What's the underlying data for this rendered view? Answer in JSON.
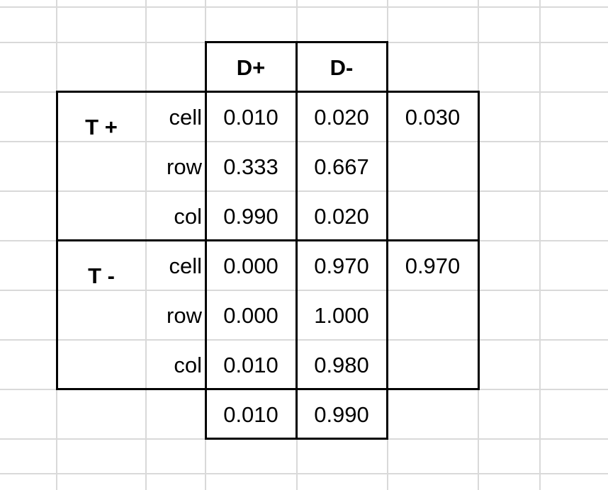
{
  "table": {
    "col_headers": [
      "D+",
      "D-"
    ],
    "groups": [
      {
        "label": "T +",
        "rows": [
          {
            "kind": "cell",
            "d_plus": "0.010",
            "d_minus": "0.020",
            "total": "0.030"
          },
          {
            "kind": "row",
            "d_plus": "0.333",
            "d_minus": "0.667",
            "total": ""
          },
          {
            "kind": "col",
            "d_plus": "0.990",
            "d_minus": "0.020",
            "total": ""
          }
        ]
      },
      {
        "label": "T -",
        "rows": [
          {
            "kind": "cell",
            "d_plus": "0.000",
            "d_minus": "0.970",
            "total": "0.970"
          },
          {
            "kind": "row",
            "d_plus": "0.000",
            "d_minus": "1.000",
            "total": ""
          },
          {
            "kind": "col",
            "d_plus": "0.010",
            "d_minus": "0.980",
            "total": ""
          }
        ]
      }
    ],
    "col_totals": [
      "0.010",
      "0.990"
    ]
  }
}
